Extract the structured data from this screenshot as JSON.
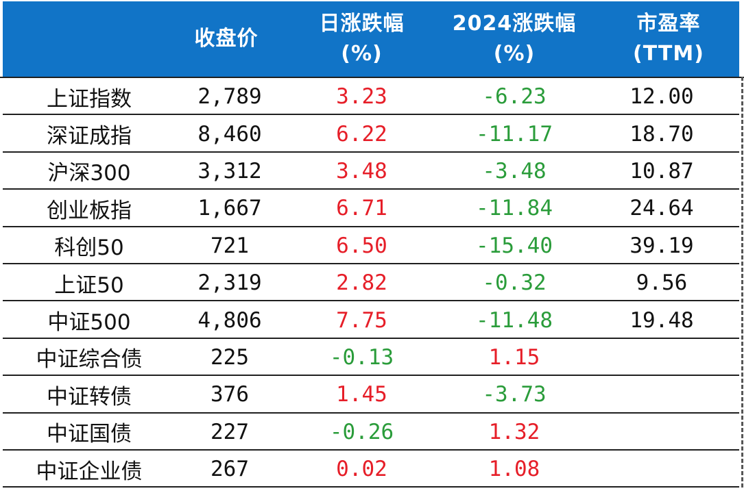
{
  "colors": {
    "header_bg": "#1174c7",
    "header_text": "#ffffff",
    "up": "#e61e28",
    "down": "#2a9c3a",
    "text": "#111111"
  },
  "headers": {
    "name": "",
    "close": "收盘价",
    "day_line1": "日涨跌幅",
    "day_line2": "(%)",
    "ytd_line1": "2024涨跌幅",
    "ytd_line2": "(%)",
    "pe_line1": "市盈率",
    "pe_line2": "(TTM)"
  },
  "rows": [
    {
      "name": "上证指数",
      "close": "2,789",
      "day": "3.23",
      "ytd": "-6.23",
      "pe": "12.00"
    },
    {
      "name": "深证成指",
      "close": "8,460",
      "day": "6.22",
      "ytd": "-11.17",
      "pe": "18.70"
    },
    {
      "name": "沪深300",
      "close": "3,312",
      "day": "3.48",
      "ytd": "-3.48",
      "pe": "10.87"
    },
    {
      "name": "创业板指",
      "close": "1,667",
      "day": "6.71",
      "ytd": "-11.84",
      "pe": "24.64"
    },
    {
      "name": "科创50",
      "close": "721",
      "day": "6.50",
      "ytd": "-15.40",
      "pe": "39.19"
    },
    {
      "name": "上证50",
      "close": "2,319",
      "day": "2.82",
      "ytd": "-0.32",
      "pe": "9.56"
    },
    {
      "name": "中证500",
      "close": "4,806",
      "day": "7.75",
      "ytd": "-11.48",
      "pe": "19.48"
    },
    {
      "name": "中证综合债",
      "close": "225",
      "day": "-0.13",
      "ytd": "1.15",
      "pe": ""
    },
    {
      "name": "中证转债",
      "close": "376",
      "day": "1.45",
      "ytd": "-3.73",
      "pe": ""
    },
    {
      "name": "中证国债",
      "close": "227",
      "day": "-0.26",
      "ytd": "1.32",
      "pe": ""
    },
    {
      "name": "中证企业债",
      "close": "267",
      "day": "0.02",
      "ytd": "1.08",
      "pe": ""
    }
  ]
}
